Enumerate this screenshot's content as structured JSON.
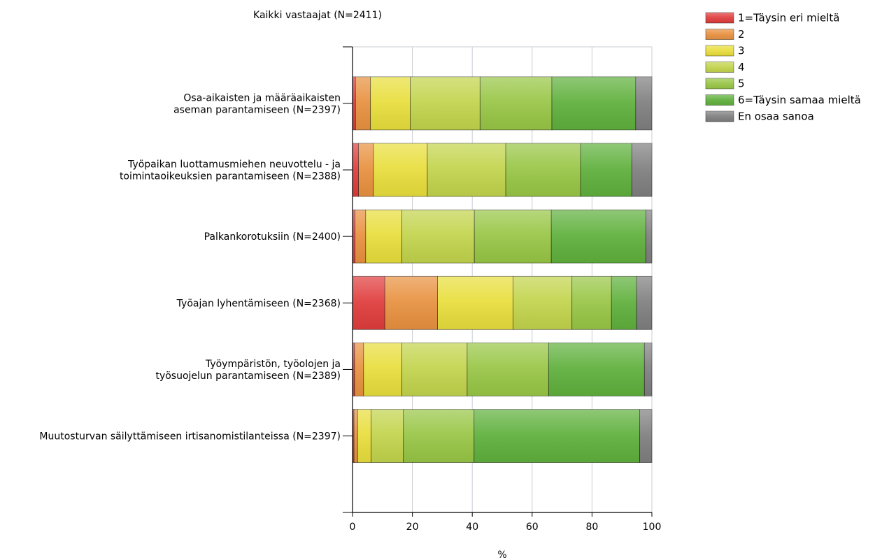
{
  "chart_data": {
    "type": "bar",
    "orientation": "horizontal",
    "stacked": true,
    "title": "Kaikki vastaajat (N=2411)",
    "xlabel": "%",
    "ylabel": "",
    "xlim": [
      0,
      100
    ],
    "x_ticks": [
      "0",
      "20",
      "40",
      "60",
      "80",
      "100"
    ],
    "grid": "vertical",
    "legend_position": "top-right",
    "categories": [
      [
        "Osa-aikaisten ja määräaikaisten",
        "aseman parantamiseen (N=2397)"
      ],
      [
        "Työpaikan luottamusmiehen neuvottelu - ja",
        "toimintaoikeuksien parantamiseen (N=2388)"
      ],
      [
        "Palkankorotuksiin (N=2400)"
      ],
      [
        "Työajan lyhentämiseen (N=2368)"
      ],
      [
        "Työympäristön, työolojen ja",
        "työsuojelun parantamiseen (N=2389)"
      ],
      [
        "Muutosturvan säilyttämiseen irtisanomistilanteissa (N=2397)"
      ]
    ],
    "series": [
      {
        "name": "1=Täysin eri mieltä",
        "color": "#e03c3c",
        "values": [
          1.0,
          2.0,
          0.8,
          10.8,
          0.7,
          0.5
        ]
      },
      {
        "name": "2",
        "color": "#e8913f",
        "values": [
          5.0,
          5.0,
          3.6,
          17.6,
          3.0,
          1.2
        ]
      },
      {
        "name": "3",
        "color": "#e8de3c",
        "values": [
          13.3,
          18.0,
          12.1,
          25.2,
          12.8,
          4.5
        ]
      },
      {
        "name": "4",
        "color": "#c2d44c",
        "values": [
          23.3,
          26.2,
          24.2,
          19.7,
          21.8,
          10.8
        ]
      },
      {
        "name": "5",
        "color": "#98c645",
        "values": [
          24.0,
          25.0,
          25.7,
          13.2,
          27.2,
          23.6
        ]
      },
      {
        "name": "6=Täysin samaa mieltä",
        "color": "#5fb03c",
        "values": [
          28.0,
          17.1,
          31.6,
          8.4,
          32.0,
          55.3
        ]
      },
      {
        "name": "En osaa sanoa",
        "color": "#7f7f7f",
        "values": [
          5.4,
          6.7,
          2.0,
          5.1,
          2.5,
          4.1
        ]
      }
    ]
  }
}
